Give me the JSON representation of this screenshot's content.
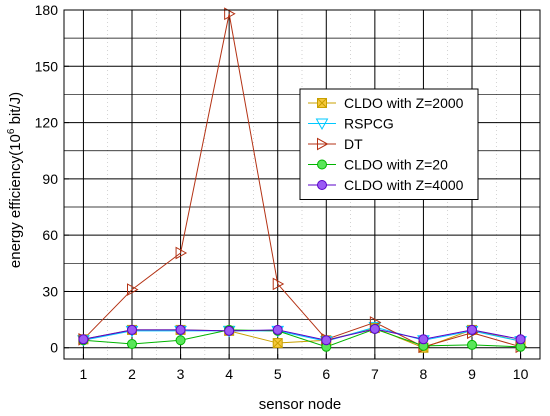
{
  "chart_data": {
    "type": "line",
    "title": "",
    "xlabel": "sensor node",
    "ylabel": "energy efficiency(10",
    "ylabel_sup": "6",
    "ylabel_tail": " bit/J)",
    "x": [
      1,
      2,
      3,
      4,
      5,
      6,
      7,
      8,
      9,
      10
    ],
    "xlim": [
      0.6,
      10.4
    ],
    "ylim": [
      -6,
      180
    ],
    "xticks": [
      1,
      2,
      3,
      4,
      5,
      6,
      7,
      8,
      9,
      10
    ],
    "yticks": [
      0,
      30,
      60,
      90,
      120,
      150,
      180
    ],
    "grid": true,
    "legend_position": "upper-right",
    "series": [
      {
        "name": "CLDO with Z=2000",
        "marker": "square-x",
        "color": "#C8A000",
        "fill": "#F5C83C",
        "values": [
          4.5,
          9.5,
          9.5,
          9.0,
          2.5,
          4.0,
          10.5,
          0.0,
          9.5,
          3.5
        ]
      },
      {
        "name": "RSPCG",
        "marker": "triangle-down",
        "color": "#00C8FF",
        "fill": "#66E0FF",
        "values": [
          4.0,
          9.0,
          9.0,
          9.0,
          9.0,
          3.5,
          11.0,
          4.0,
          9.0,
          3.5
        ]
      },
      {
        "name": "DT",
        "marker": "triangle-right",
        "color": "#B43214",
        "fill": "#F08C6E",
        "values": [
          4.5,
          31.0,
          50.5,
          178.0,
          34.0,
          4.5,
          13.5,
          0.5,
          8.0,
          0.5
        ]
      },
      {
        "name": "CLDO with Z=20",
        "marker": "circle",
        "color": "#00B400",
        "fill": "#5AE65A",
        "values": [
          4.0,
          2.0,
          4.0,
          9.5,
          9.0,
          0.5,
          10.0,
          1.0,
          1.5,
          0.5
        ]
      },
      {
        "name": "CLDO with Z=4000",
        "marker": "circle",
        "color": "#5A00C8",
        "fill": "#9B5AF5",
        "values": [
          4.5,
          9.5,
          9.5,
          9.0,
          9.5,
          4.0,
          10.0,
          4.5,
          9.5,
          4.5
        ]
      }
    ]
  }
}
